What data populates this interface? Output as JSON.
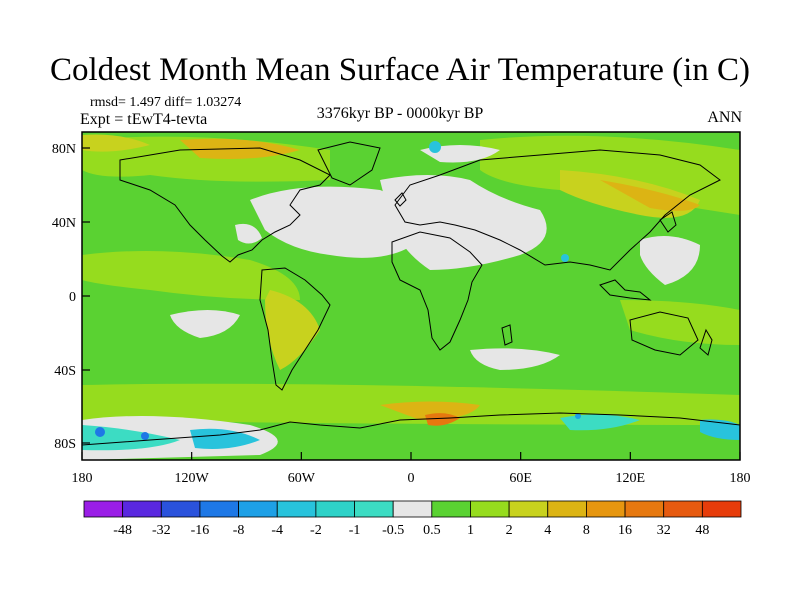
{
  "title": "Coldest Month Mean Surface Air Temperature (in C)",
  "stats": "rmsd= 1.497 diff= 1.03274",
  "experiment": "Expt = tEwT4-tevta",
  "period": "3376kyr BP - 0000kyr BP",
  "season": "ANN",
  "lat_labels": [
    "80N",
    "40N",
    "0",
    "40S",
    "80S"
  ],
  "lon_labels": [
    "180",
    "120W",
    "60W",
    "0",
    "60E",
    "120E",
    "180"
  ],
  "colorbar": {
    "labels": [
      "-48",
      "-32",
      "-16",
      "-8",
      "-4",
      "-2",
      "-1",
      "-0.5",
      "0.5",
      "1",
      "2",
      "4",
      "8",
      "16",
      "32",
      "48"
    ],
    "colors": [
      "#9a1ee6",
      "#5a28e0",
      "#2a52dc",
      "#1e78e6",
      "#1ea0e6",
      "#28c3dc",
      "#2ed2c8",
      "#3cdcc3",
      "#e6e6e6",
      "#5ad232",
      "#96dc1e",
      "#c8d21e",
      "#dcb414",
      "#e6960f",
      "#e6780f",
      "#e65a0f",
      "#e63c0a"
    ]
  }
}
